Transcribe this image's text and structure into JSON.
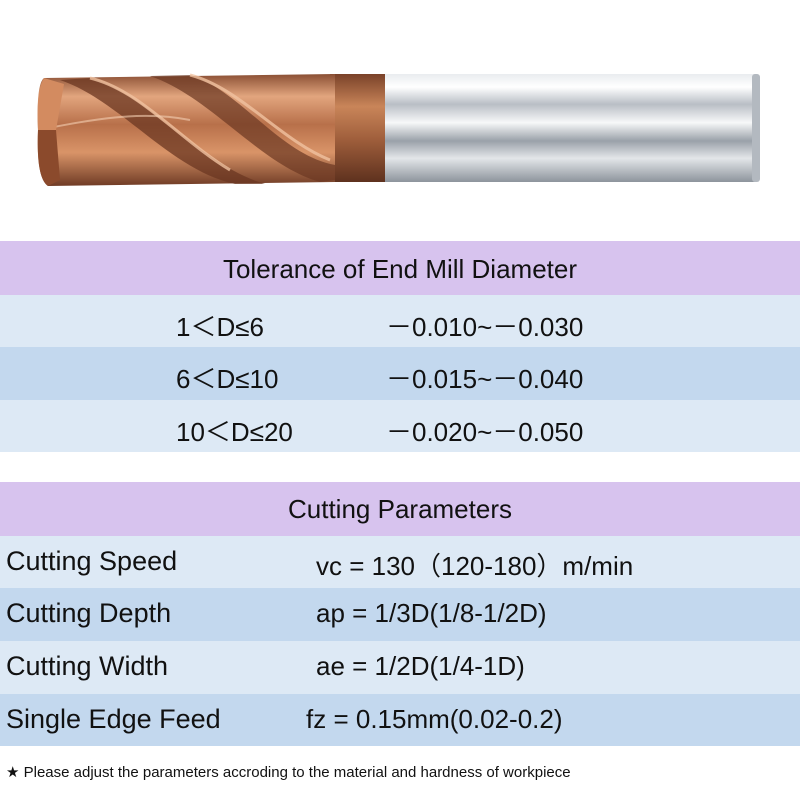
{
  "tolerance": {
    "title": "Tolerance of End Mill Diameter",
    "rows": [
      {
        "range": "1＜D≤6",
        "tolerance": "－0.010~－0.030"
      },
      {
        "range": "6＜D≤10",
        "tolerance": "－0.015~－0.040"
      },
      {
        "range": "10＜D≤20",
        "tolerance": "－0.020~－0.050"
      }
    ]
  },
  "cutting": {
    "title": "Cutting Parameters",
    "rows": [
      {
        "label": "Cutting Speed",
        "value": "vc = 130（120-180）m/min"
      },
      {
        "label": "Cutting Depth",
        "value": "ap = 1/3D(1/8-1/2D)"
      },
      {
        "label": "Cutting Width",
        "value": "ae = 1/2D(1/4-1D)"
      },
      {
        "label": "Single Edge Feed",
        "value": "fz = 0.15mm(0.02-0.2)"
      }
    ]
  },
  "footnote": "★ Please adjust the parameters accroding to the material and hardness of workpiece",
  "colors": {
    "header_purple": "#d7c3ee",
    "row_light_blue": "#dde9f5",
    "row_mid_blue": "#c3d8ee",
    "coating_copper": "#b8704a",
    "shank_silver": "#c8cdd3"
  }
}
